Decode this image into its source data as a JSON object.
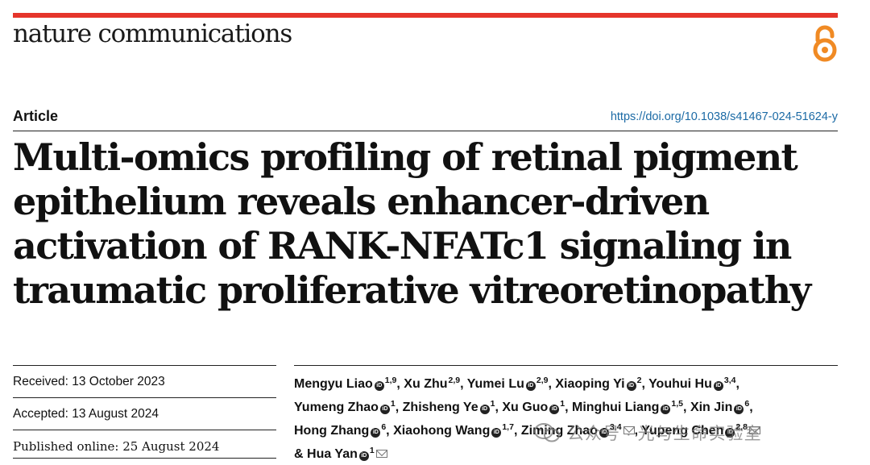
{
  "header": {
    "journal_name": "nature communications",
    "accent_color": "#e5352b",
    "open_access_icon": "open-access-lock-icon"
  },
  "article": {
    "type": "Article",
    "doi": "https://doi.org/10.1038/s41467-024-51624-y",
    "title": "Multi-omics profiling of retinal pigment epithelium reveals enhancer-driven activation of RANK-NFATc1 signaling in traumatic proliferative vitreoretinopathy"
  },
  "meta": {
    "received": "Received: 13 October 2023",
    "accepted": "Accepted: 13 August 2024",
    "published": "Published online: 25 August 2024"
  },
  "authors": [
    {
      "name": "Mengyu Liao",
      "orcid": true,
      "aff": "1,9",
      "corresponding": false
    },
    {
      "name": "Xu Zhu",
      "orcid": false,
      "aff": "2,9",
      "corresponding": false
    },
    {
      "name": "Yumei Lu",
      "orcid": true,
      "aff": "2,9",
      "corresponding": false
    },
    {
      "name": "Xiaoping Yi",
      "orcid": true,
      "aff": "2",
      "corresponding": false
    },
    {
      "name": "Youhui Hu",
      "orcid": true,
      "aff": "3,4",
      "corresponding": false
    },
    {
      "name": "Yumeng Zhao",
      "orcid": true,
      "aff": "1",
      "corresponding": false
    },
    {
      "name": "Zhisheng Ye",
      "orcid": true,
      "aff": "1",
      "corresponding": false
    },
    {
      "name": "Xu Guo",
      "orcid": true,
      "aff": "1",
      "corresponding": false
    },
    {
      "name": "Minghui Liang",
      "orcid": true,
      "aff": "1,5",
      "corresponding": false
    },
    {
      "name": "Xin Jin",
      "orcid": true,
      "aff": "6",
      "corresponding": false
    },
    {
      "name": "Hong Zhang",
      "orcid": true,
      "aff": "6",
      "corresponding": false
    },
    {
      "name": "Xiaohong Wang",
      "orcid": true,
      "aff": "1,7",
      "corresponding": false
    },
    {
      "name": "Ziming Zhao",
      "orcid": true,
      "aff": "3,4",
      "corresponding": true
    },
    {
      "name": "Yupeng Chen",
      "orcid": true,
      "aff": "2,8",
      "corresponding": true
    },
    {
      "name": "Hua Yan",
      "orcid": true,
      "aff": "1",
      "corresponding": true
    }
  ],
  "authors_final_connector": "&",
  "watermark": {
    "text": "公众号 · 光与生命实验室",
    "icon": "wechat-icon"
  }
}
